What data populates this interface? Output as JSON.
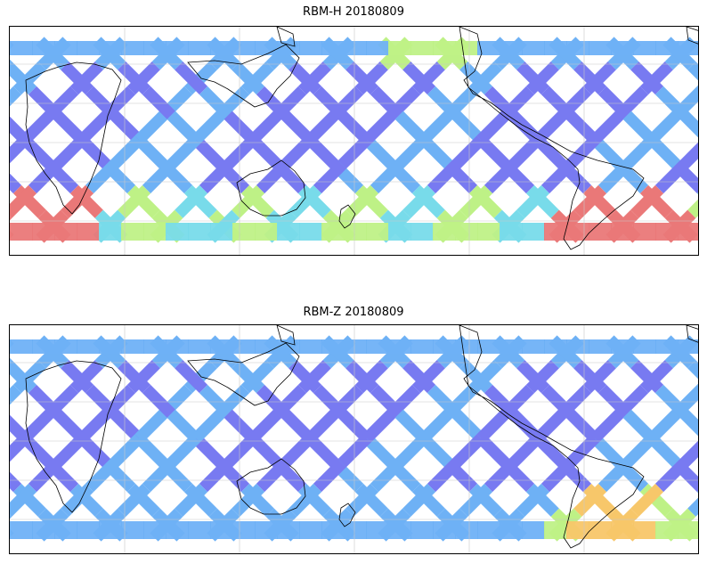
{
  "panels": [
    {
      "title": "RBM-H 20180809"
    },
    {
      "title": "RBM-Z 20180809"
    }
  ],
  "colors": {
    "low": "#6a6cf0",
    "low_mid": "#5fa9f5",
    "mid": "#6ad8e8",
    "mid_high": "#b8f07a",
    "high_mid": "#f7c15a",
    "high": "#e86a6a",
    "coastline": "#000000",
    "gridline": "#c8c8c8"
  },
  "colormap": "jet",
  "gridlines": true
}
